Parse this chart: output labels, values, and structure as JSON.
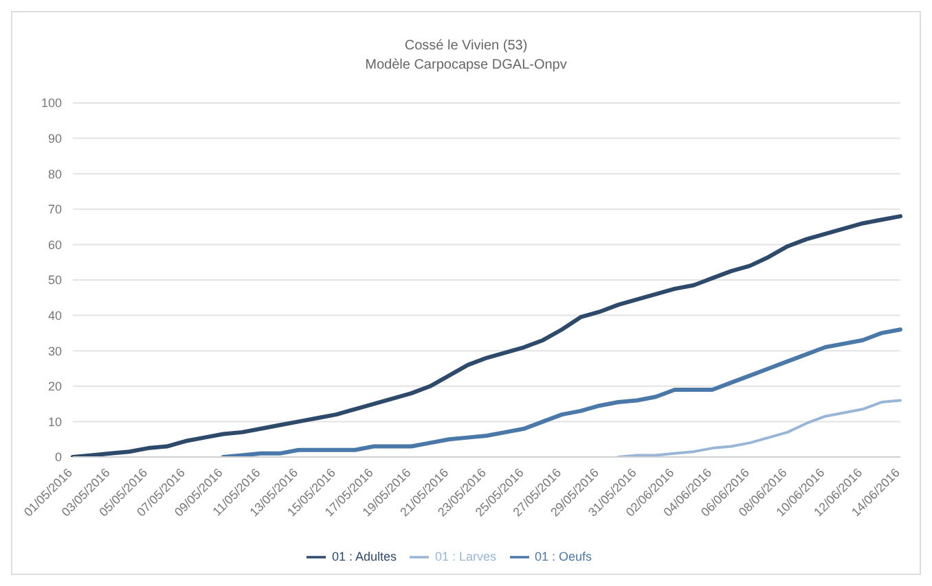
{
  "chart_data": {
    "type": "line",
    "title": "Cossé le Vivien (53)",
    "subtitle": "Modèle Carpocapse DGAL-Onpv",
    "categories": [
      "01/05/2016",
      null,
      "03/05/2016",
      null,
      "05/05/2016",
      null,
      "07/05/2016",
      null,
      "09/05/2016",
      null,
      "11/05/2016",
      null,
      "13/05/2016",
      null,
      "15/05/2016",
      null,
      "17/05/2016",
      null,
      "19/05/2016",
      null,
      "21/05/2016",
      null,
      "23/05/2016",
      null,
      "25/05/2016",
      null,
      "27/05/2016",
      null,
      "29/05/2016",
      null,
      "31/05/2016",
      null,
      "02/06/2016",
      null,
      "04/06/2016",
      null,
      "06/06/2016",
      null,
      "08/06/2016",
      null,
      "10/06/2016",
      null,
      "12/06/2016",
      null,
      "14/06/2016"
    ],
    "series": [
      {
        "name": "01 : Adultes",
        "color": "#2e4a6b",
        "values": [
          0,
          0.5,
          1,
          1.5,
          2.5,
          3,
          4.5,
          5.5,
          6.5,
          7,
          8,
          9,
          10,
          11,
          12,
          13.5,
          15,
          16.5,
          18,
          20,
          23,
          26,
          28,
          29.5,
          31,
          33,
          36,
          39.5,
          41,
          43,
          44.5,
          46,
          47.5,
          48.5,
          50.5,
          52.5,
          54,
          56.5,
          59.5,
          61.5,
          63,
          64.5,
          66,
          67,
          68
        ]
      },
      {
        "name": "01 : Oeufs",
        "color": "#4a78a8",
        "values": [
          null,
          null,
          null,
          null,
          null,
          null,
          null,
          null,
          0,
          0.5,
          1,
          1,
          2,
          2,
          2,
          2,
          3,
          3,
          3,
          4,
          5,
          5.5,
          6,
          7,
          8,
          10,
          12,
          13,
          14.5,
          15.5,
          16,
          17,
          19,
          19,
          19,
          21,
          23,
          25,
          27,
          29,
          31,
          32,
          33,
          35,
          36
        ]
      },
      {
        "name": "01 : Larves",
        "color": "#9ab6d6",
        "values": [
          null,
          null,
          null,
          null,
          null,
          null,
          null,
          null,
          null,
          null,
          null,
          null,
          null,
          null,
          null,
          null,
          null,
          null,
          null,
          null,
          null,
          null,
          null,
          null,
          null,
          null,
          null,
          null,
          null,
          0,
          0.5,
          0.5,
          1,
          1.5,
          2.5,
          3,
          4,
          5.5,
          7,
          9.5,
          11.5,
          12.5,
          13.5,
          15.5,
          16
        ]
      }
    ],
    "ylim": [
      0,
      100
    ],
    "yticks": [
      0,
      10,
      20,
      30,
      40,
      50,
      60,
      70,
      80,
      90,
      100
    ],
    "grid": "y",
    "legend": "bottom",
    "marker": "none",
    "line_style": "solid"
  }
}
